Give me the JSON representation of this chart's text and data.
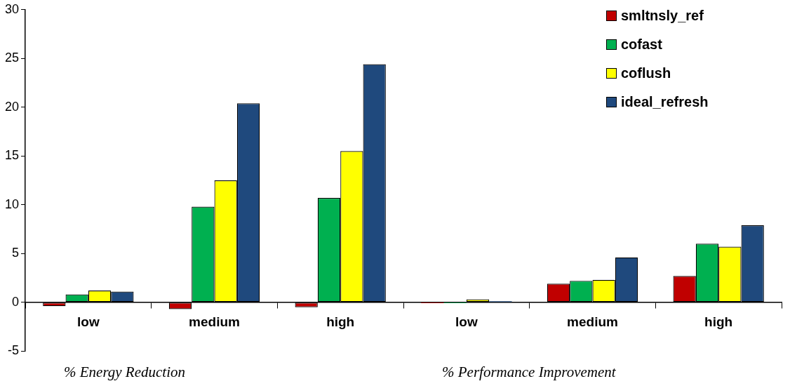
{
  "chart_data": {
    "type": "bar",
    "categories": [
      "low",
      "medium",
      "high",
      "low",
      "medium",
      "high"
    ],
    "series": [
      {
        "name": "smltnsly_ref",
        "color": "#c00000",
        "values": [
          -0.4,
          -0.7,
          -0.5,
          -0.1,
          1.9,
          2.7
        ]
      },
      {
        "name": "cofast",
        "color": "#00b050",
        "values": [
          0.8,
          9.8,
          10.7,
          -0.1,
          2.2,
          6.0
        ]
      },
      {
        "name": "coflush",
        "color": "#ffff00",
        "values": [
          1.2,
          12.5,
          15.5,
          0.3,
          2.3,
          5.7
        ]
      },
      {
        "name": "ideal_refresh",
        "color": "#1f497d",
        "values": [
          1.1,
          20.4,
          24.4,
          0.1,
          4.6,
          7.9
        ]
      }
    ],
    "ylim": [
      -5,
      30
    ],
    "yticks": [
      -5,
      0,
      5,
      10,
      15,
      20,
      25,
      30
    ],
    "grid": false,
    "legend": "top right",
    "annotations": [
      "%  Energy Reduction",
      "%  Performance Improvement"
    ]
  }
}
